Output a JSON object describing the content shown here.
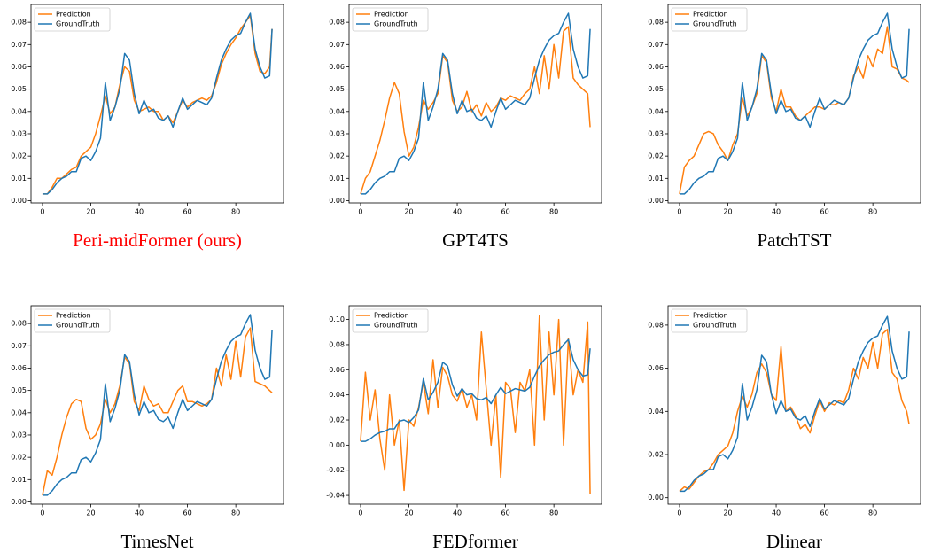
{
  "chart_data": [
    {
      "type": "line",
      "title": "Peri-midFormer (ours)",
      "title_color": "#ff0000",
      "x": [
        0,
        2,
        4,
        6,
        8,
        10,
        12,
        14,
        16,
        18,
        20,
        22,
        24,
        26,
        28,
        30,
        32,
        34,
        36,
        38,
        40,
        42,
        44,
        46,
        48,
        50,
        52,
        54,
        56,
        58,
        60,
        62,
        64,
        66,
        68,
        70,
        72,
        74,
        76,
        78,
        80,
        82,
        84,
        86,
        88,
        90,
        92,
        94,
        95
      ],
      "series": [
        {
          "name": "Prediction",
          "color": "#ff7f0e",
          "values": [
            0.003,
            0.003,
            0.006,
            0.01,
            0.01,
            0.012,
            0.014,
            0.015,
            0.02,
            0.022,
            0.024,
            0.03,
            0.038,
            0.047,
            0.039,
            0.042,
            0.052,
            0.06,
            0.058,
            0.045,
            0.04,
            0.041,
            0.042,
            0.04,
            0.04,
            0.036,
            0.038,
            0.035,
            0.04,
            0.045,
            0.042,
            0.044,
            0.045,
            0.046,
            0.045,
            0.047,
            0.053,
            0.061,
            0.066,
            0.07,
            0.073,
            0.077,
            0.08,
            0.083,
            0.066,
            0.058,
            0.057,
            0.06,
            0.077
          ]
        },
        {
          "name": "GroundTruth",
          "color": "#1f77b4",
          "values": [
            0.003,
            0.003,
            0.005,
            0.008,
            0.01,
            0.011,
            0.013,
            0.013,
            0.019,
            0.02,
            0.018,
            0.022,
            0.028,
            0.053,
            0.036,
            0.042,
            0.05,
            0.066,
            0.063,
            0.048,
            0.039,
            0.045,
            0.04,
            0.041,
            0.037,
            0.036,
            0.038,
            0.033,
            0.04,
            0.046,
            0.041,
            0.043,
            0.045,
            0.044,
            0.043,
            0.046,
            0.055,
            0.063,
            0.068,
            0.072,
            0.074,
            0.075,
            0.08,
            0.084,
            0.068,
            0.06,
            0.055,
            0.056,
            0.077
          ]
        }
      ],
      "xlim": [
        -4.75,
        99.75
      ],
      "xticks": [
        0,
        20,
        40,
        60,
        80
      ],
      "ylim": [
        -0.001,
        0.088
      ],
      "yticks": [
        {
          "value": 0,
          "label": "0.00"
        },
        0.01,
        0.02,
        0.03,
        0.04,
        0.05,
        0.06,
        0.07,
        0.08
      ],
      "legend": "upper left"
    },
    {
      "type": "line",
      "title": "GPT4TS",
      "title_color": "#000000",
      "x": [
        0,
        2,
        4,
        6,
        8,
        10,
        12,
        14,
        16,
        18,
        20,
        22,
        24,
        26,
        28,
        30,
        32,
        34,
        36,
        38,
        40,
        42,
        44,
        46,
        48,
        50,
        52,
        54,
        56,
        58,
        60,
        62,
        64,
        66,
        68,
        70,
        72,
        74,
        76,
        78,
        80,
        82,
        84,
        86,
        88,
        90,
        92,
        94,
        95
      ],
      "series": [
        {
          "name": "Prediction",
          "color": "#ff7f0e",
          "values": [
            0.003,
            0.01,
            0.013,
            0.02,
            0.027,
            0.036,
            0.046,
            0.053,
            0.048,
            0.031,
            0.02,
            0.024,
            0.033,
            0.045,
            0.041,
            0.044,
            0.048,
            0.065,
            0.062,
            0.045,
            0.04,
            0.042,
            0.049,
            0.04,
            0.043,
            0.038,
            0.044,
            0.04,
            0.042,
            0.046,
            0.045,
            0.047,
            0.046,
            0.045,
            0.048,
            0.05,
            0.06,
            0.048,
            0.065,
            0.05,
            0.07,
            0.055,
            0.076,
            0.078,
            0.055,
            0.052,
            0.05,
            0.048,
            0.033
          ]
        },
        {
          "name": "GroundTruth",
          "color": "#1f77b4",
          "values": [
            0.003,
            0.003,
            0.005,
            0.008,
            0.01,
            0.011,
            0.013,
            0.013,
            0.019,
            0.02,
            0.018,
            0.022,
            0.028,
            0.053,
            0.036,
            0.042,
            0.05,
            0.066,
            0.063,
            0.048,
            0.039,
            0.045,
            0.04,
            0.041,
            0.037,
            0.036,
            0.038,
            0.033,
            0.04,
            0.046,
            0.041,
            0.043,
            0.045,
            0.044,
            0.043,
            0.046,
            0.055,
            0.063,
            0.068,
            0.072,
            0.074,
            0.075,
            0.08,
            0.084,
            0.068,
            0.06,
            0.055,
            0.056,
            0.077
          ]
        }
      ],
      "xlim": [
        -4.75,
        99.75
      ],
      "xticks": [
        0,
        20,
        40,
        60,
        80
      ],
      "ylim": [
        -0.001,
        0.088
      ],
      "yticks": [
        {
          "value": 0,
          "label": "0.00"
        },
        0.01,
        0.02,
        0.03,
        0.04,
        0.05,
        0.06,
        0.07,
        0.08
      ],
      "legend": "upper left"
    },
    {
      "type": "line",
      "title": "PatchTST",
      "title_color": "#000000",
      "x": [
        0,
        2,
        4,
        6,
        8,
        10,
        12,
        14,
        16,
        18,
        20,
        22,
        24,
        26,
        28,
        30,
        32,
        34,
        36,
        38,
        40,
        42,
        44,
        46,
        48,
        50,
        52,
        54,
        56,
        58,
        60,
        62,
        64,
        66,
        68,
        70,
        72,
        74,
        76,
        78,
        80,
        82,
        84,
        86,
        88,
        90,
        92,
        94,
        95
      ],
      "series": [
        {
          "name": "Prediction",
          "color": "#ff7f0e",
          "values": [
            0.003,
            0.015,
            0.018,
            0.02,
            0.025,
            0.03,
            0.031,
            0.03,
            0.025,
            0.022,
            0.018,
            0.025,
            0.03,
            0.046,
            0.038,
            0.042,
            0.048,
            0.065,
            0.062,
            0.046,
            0.04,
            0.05,
            0.042,
            0.042,
            0.038,
            0.036,
            0.038,
            0.04,
            0.042,
            0.042,
            0.041,
            0.043,
            0.043,
            0.044,
            0.043,
            0.046,
            0.056,
            0.06,
            0.055,
            0.065,
            0.06,
            0.068,
            0.066,
            0.078,
            0.06,
            0.059,
            0.055,
            0.054,
            0.053
          ]
        },
        {
          "name": "GroundTruth",
          "color": "#1f77b4",
          "values": [
            0.003,
            0.003,
            0.005,
            0.008,
            0.01,
            0.011,
            0.013,
            0.013,
            0.019,
            0.02,
            0.018,
            0.022,
            0.028,
            0.053,
            0.036,
            0.042,
            0.05,
            0.066,
            0.063,
            0.048,
            0.039,
            0.045,
            0.04,
            0.041,
            0.037,
            0.036,
            0.038,
            0.033,
            0.04,
            0.046,
            0.041,
            0.043,
            0.045,
            0.044,
            0.043,
            0.046,
            0.055,
            0.063,
            0.068,
            0.072,
            0.074,
            0.075,
            0.08,
            0.084,
            0.068,
            0.06,
            0.055,
            0.056,
            0.077
          ]
        }
      ],
      "xlim": [
        -4.75,
        99.75
      ],
      "xticks": [
        0,
        20,
        40,
        60,
        80
      ],
      "ylim": [
        -0.001,
        0.088
      ],
      "yticks": [
        {
          "value": 0,
          "label": "0.00"
        },
        0.01,
        0.02,
        0.03,
        0.04,
        0.05,
        0.06,
        0.07,
        0.08
      ],
      "legend": "upper left"
    },
    {
      "type": "line",
      "title": "TimesNet",
      "title_color": "#000000",
      "x": [
        0,
        2,
        4,
        6,
        8,
        10,
        12,
        14,
        16,
        18,
        20,
        22,
        24,
        26,
        28,
        30,
        32,
        34,
        36,
        38,
        40,
        42,
        44,
        46,
        48,
        50,
        52,
        54,
        56,
        58,
        60,
        62,
        64,
        66,
        68,
        70,
        72,
        74,
        76,
        78,
        80,
        82,
        84,
        86,
        88,
        90,
        92,
        94,
        95
      ],
      "series": [
        {
          "name": "Prediction",
          "color": "#ff7f0e",
          "values": [
            0.003,
            0.014,
            0.012,
            0.02,
            0.03,
            0.038,
            0.044,
            0.046,
            0.045,
            0.033,
            0.028,
            0.03,
            0.035,
            0.046,
            0.04,
            0.044,
            0.052,
            0.065,
            0.062,
            0.045,
            0.041,
            0.052,
            0.046,
            0.043,
            0.044,
            0.04,
            0.04,
            0.045,
            0.05,
            0.052,
            0.045,
            0.045,
            0.044,
            0.043,
            0.044,
            0.046,
            0.06,
            0.052,
            0.066,
            0.055,
            0.072,
            0.056,
            0.074,
            0.078,
            0.054,
            0.053,
            0.052,
            0.05,
            0.049
          ]
        },
        {
          "name": "GroundTruth",
          "color": "#1f77b4",
          "values": [
            0.003,
            0.003,
            0.005,
            0.008,
            0.01,
            0.011,
            0.013,
            0.013,
            0.019,
            0.02,
            0.018,
            0.022,
            0.028,
            0.053,
            0.036,
            0.042,
            0.05,
            0.066,
            0.063,
            0.048,
            0.039,
            0.045,
            0.04,
            0.041,
            0.037,
            0.036,
            0.038,
            0.033,
            0.04,
            0.046,
            0.041,
            0.043,
            0.045,
            0.044,
            0.043,
            0.046,
            0.055,
            0.063,
            0.068,
            0.072,
            0.074,
            0.075,
            0.08,
            0.084,
            0.068,
            0.06,
            0.055,
            0.056,
            0.077
          ]
        }
      ],
      "xlim": [
        -4.75,
        99.75
      ],
      "xticks": [
        0,
        20,
        40,
        60,
        80
      ],
      "ylim": [
        -0.001,
        0.088
      ],
      "yticks": [
        {
          "value": 0,
          "label": "0.00"
        },
        0.01,
        0.02,
        0.03,
        0.04,
        0.05,
        0.06,
        0.07,
        0.08
      ],
      "legend": "upper left"
    },
    {
      "type": "line",
      "title": "FEDformer",
      "title_color": "#000000",
      "x": [
        0,
        2,
        4,
        6,
        8,
        10,
        12,
        14,
        16,
        18,
        20,
        22,
        24,
        26,
        28,
        30,
        32,
        34,
        36,
        38,
        40,
        42,
        44,
        46,
        48,
        50,
        52,
        54,
        56,
        58,
        60,
        62,
        64,
        66,
        68,
        70,
        72,
        74,
        76,
        78,
        80,
        82,
        84,
        86,
        88,
        90,
        92,
        94,
        95
      ],
      "series": [
        {
          "name": "Prediction",
          "color": "#ff7f0e",
          "values": [
            0.003,
            0.058,
            0.02,
            0.044,
            0.005,
            -0.02,
            0.04,
            0.0,
            0.02,
            -0.036,
            0.02,
            0.015,
            0.03,
            0.05,
            0.025,
            0.068,
            0.03,
            0.062,
            0.055,
            0.04,
            0.035,
            0.045,
            0.03,
            0.04,
            0.02,
            0.09,
            0.045,
            0.0,
            0.04,
            -0.026,
            0.05,
            0.045,
            0.01,
            0.05,
            0.043,
            0.06,
            0.0,
            0.103,
            0.02,
            0.09,
            0.04,
            0.1,
            0.0,
            0.085,
            0.04,
            0.06,
            0.05,
            0.098,
            -0.039
          ]
        },
        {
          "name": "GroundTruth",
          "color": "#1f77b4",
          "values": [
            0.003,
            0.003,
            0.005,
            0.008,
            0.01,
            0.011,
            0.013,
            0.013,
            0.019,
            0.02,
            0.018,
            0.022,
            0.028,
            0.053,
            0.036,
            0.042,
            0.05,
            0.066,
            0.063,
            0.048,
            0.039,
            0.045,
            0.04,
            0.041,
            0.037,
            0.036,
            0.038,
            0.033,
            0.04,
            0.046,
            0.041,
            0.043,
            0.045,
            0.044,
            0.043,
            0.046,
            0.055,
            0.063,
            0.068,
            0.072,
            0.074,
            0.075,
            0.08,
            0.084,
            0.068,
            0.06,
            0.055,
            0.056,
            0.077
          ]
        }
      ],
      "xlim": [
        -4.75,
        99.75
      ],
      "xticks": [
        0,
        20,
        40,
        60,
        80
      ],
      "ylim": [
        -0.047,
        0.111
      ],
      "yticks": [
        -0.04,
        -0.02,
        {
          "value": 0,
          "label": "0.00"
        },
        0.02,
        0.04,
        0.06,
        0.08,
        {
          "value": 0.1,
          "label": "0.10"
        }
      ],
      "legend": "upper left"
    },
    {
      "type": "line",
      "title": "Dlinear",
      "title_color": "#000000",
      "x": [
        0,
        2,
        4,
        6,
        8,
        10,
        12,
        14,
        16,
        18,
        20,
        22,
        24,
        26,
        28,
        30,
        32,
        34,
        36,
        38,
        40,
        42,
        44,
        46,
        48,
        50,
        52,
        54,
        56,
        58,
        60,
        62,
        64,
        66,
        68,
        70,
        72,
        74,
        76,
        78,
        80,
        82,
        84,
        86,
        88,
        90,
        92,
        94,
        95
      ],
      "series": [
        {
          "name": "Prediction",
          "color": "#ff7f0e",
          "values": [
            0.003,
            0.005,
            0.004,
            0.007,
            0.01,
            0.012,
            0.013,
            0.016,
            0.02,
            0.022,
            0.024,
            0.03,
            0.04,
            0.047,
            0.042,
            0.048,
            0.058,
            0.062,
            0.058,
            0.048,
            0.045,
            0.07,
            0.04,
            0.042,
            0.038,
            0.032,
            0.034,
            0.03,
            0.038,
            0.045,
            0.04,
            0.044,
            0.043,
            0.045,
            0.044,
            0.05,
            0.06,
            0.055,
            0.065,
            0.06,
            0.072,
            0.06,
            0.076,
            0.078,
            0.058,
            0.055,
            0.045,
            0.04,
            0.034
          ]
        },
        {
          "name": "GroundTruth",
          "color": "#1f77b4",
          "values": [
            0.003,
            0.003,
            0.005,
            0.008,
            0.01,
            0.011,
            0.013,
            0.013,
            0.019,
            0.02,
            0.018,
            0.022,
            0.028,
            0.053,
            0.036,
            0.042,
            0.05,
            0.066,
            0.063,
            0.048,
            0.039,
            0.045,
            0.04,
            0.041,
            0.037,
            0.036,
            0.038,
            0.033,
            0.04,
            0.046,
            0.041,
            0.043,
            0.045,
            0.044,
            0.043,
            0.046,
            0.055,
            0.063,
            0.068,
            0.072,
            0.074,
            0.075,
            0.08,
            0.084,
            0.068,
            0.06,
            0.055,
            0.056,
            0.077
          ]
        }
      ],
      "xlim": [
        -4.75,
        99.75
      ],
      "xticks": [
        0,
        20,
        40,
        60,
        80
      ],
      "ylim": [
        -0.003,
        0.089
      ],
      "yticks": [
        {
          "value": 0,
          "label": "0.00"
        },
        0.02,
        0.04,
        0.06,
        0.08
      ],
      "legend": "upper left"
    }
  ]
}
